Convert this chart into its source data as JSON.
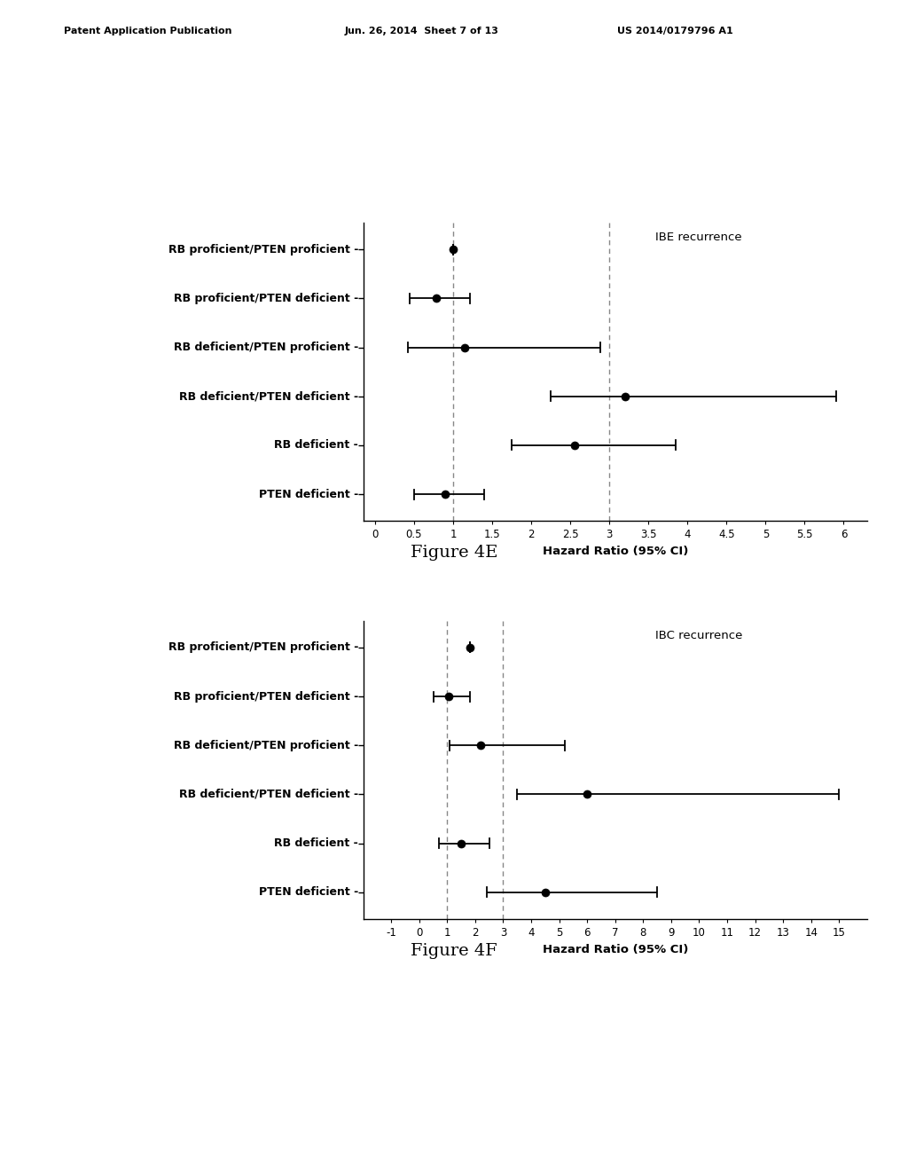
{
  "panel_E": {
    "title": "IBE recurrence",
    "labels": [
      "RB proficient/PTEN proficient",
      "RB proficient/PTEN deficient",
      "RB deficient/PTEN proficient",
      "RB deficient/PTEN deficient",
      "RB deficient",
      "PTEN deficient"
    ],
    "centers": [
      1.0,
      0.78,
      1.15,
      3.2,
      2.55,
      0.9
    ],
    "ci_low": [
      1.0,
      0.45,
      0.42,
      2.25,
      1.75,
      0.5
    ],
    "ci_high": [
      1.0,
      1.22,
      2.88,
      5.9,
      3.85,
      1.4
    ],
    "vlines": [
      1.0,
      3.0
    ],
    "xlim": [
      -0.15,
      6.3
    ],
    "xticks": [
      0.0,
      0.5,
      1.0,
      1.5,
      2.0,
      2.5,
      3.0,
      3.5,
      4.0,
      4.5,
      5.0,
      5.5,
      6.0
    ],
    "xlabel": "Hazard Ratio (95% CI)",
    "figure_label": "Figure 4E"
  },
  "panel_F": {
    "title": "IBC recurrence",
    "labels": [
      "RB proficient/PTEN proficient",
      "RB proficient/PTEN deficient",
      "RB deficient/PTEN proficient",
      "RB deficient/PTEN deficient",
      "RB deficient",
      "PTEN deficient"
    ],
    "centers": [
      1.8,
      1.05,
      2.2,
      6.0,
      1.5,
      4.5
    ],
    "ci_low": [
      1.8,
      0.5,
      1.1,
      3.5,
      0.7,
      2.4
    ],
    "ci_high": [
      1.8,
      1.8,
      5.2,
      15.0,
      2.5,
      8.5
    ],
    "vlines": [
      1.0,
      3.0
    ],
    "xlim": [
      -2.0,
      16.0
    ],
    "xticks": [
      -1,
      0,
      1,
      2,
      3,
      4,
      5,
      6,
      7,
      8,
      9,
      10,
      11,
      12,
      13,
      14,
      15
    ],
    "xlabel": "Hazard Ratio (95% CI)",
    "figure_label": "Figure 4F"
  },
  "header_line1": "Patent Application Publication",
  "header_line2": "Jun. 26, 2014  Sheet 7 of 13",
  "header_line3": "US 2014/0179796 A1",
  "bg_color": "#ffffff",
  "point_color": "#000000",
  "line_color": "#000000",
  "vline_color": "#888888",
  "label_fontsize": 9.0,
  "tick_fontsize": 8.5,
  "title_fontsize": 9.5,
  "xlabel_fontsize": 9.5,
  "figure_label_fontsize": 14
}
